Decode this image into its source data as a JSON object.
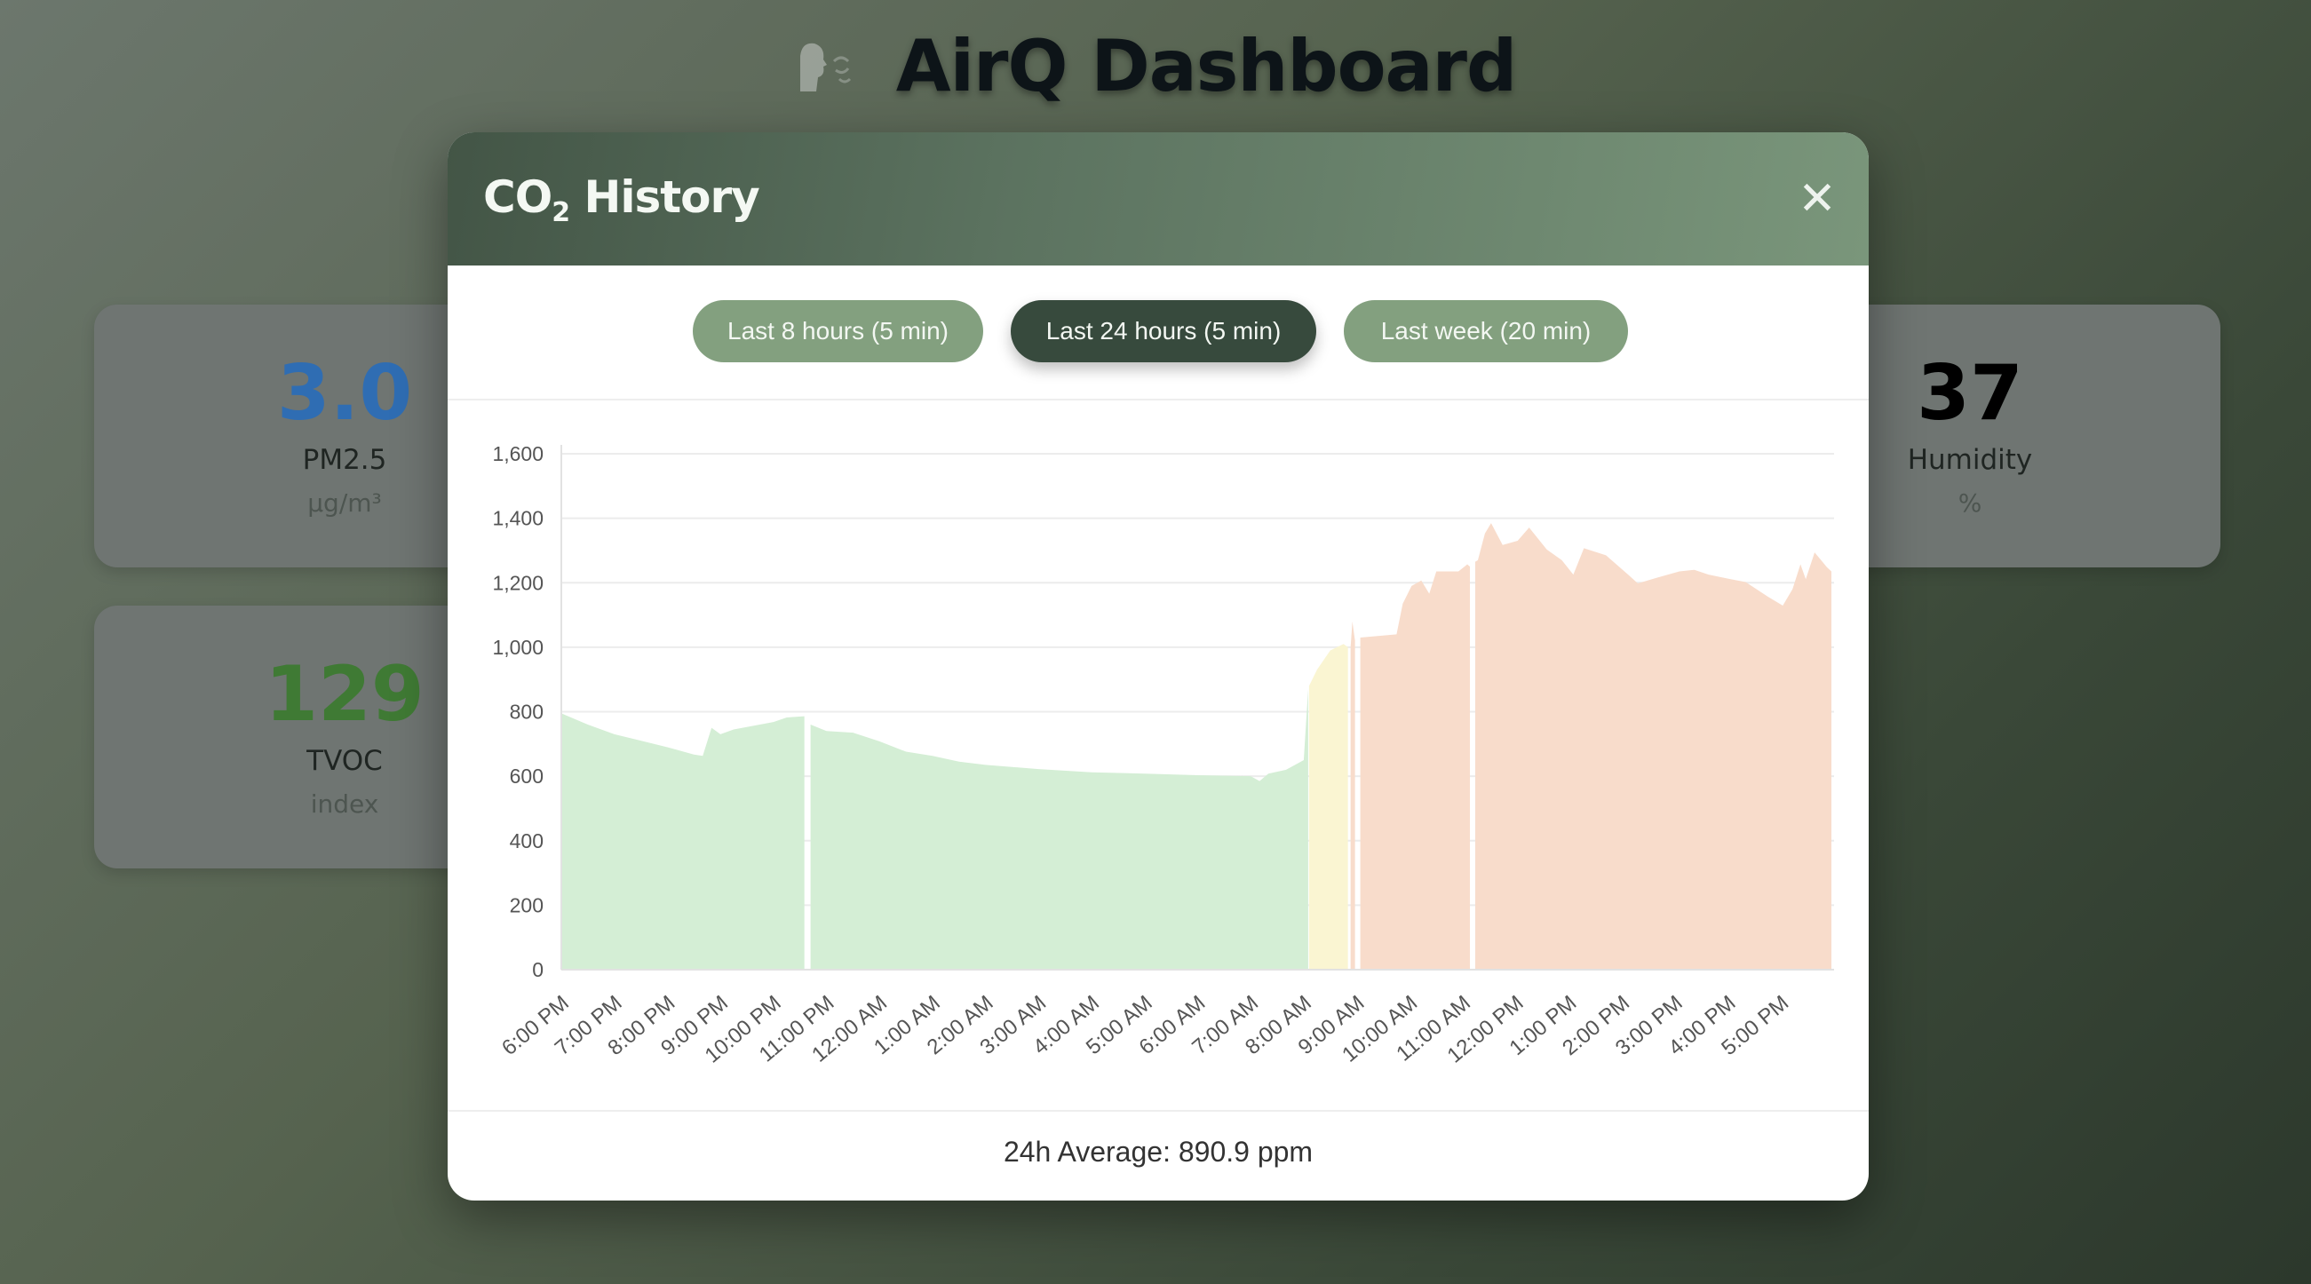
{
  "header": {
    "title": "AirQ Dashboard",
    "logo_icon": "person-breathing-icon"
  },
  "cards": [
    {
      "value": "3.0",
      "label": "PM2.5",
      "unit": "µg/m³",
      "color": "#2f6db3"
    },
    {
      "value": "129",
      "label": "TVOC",
      "unit": "index",
      "color": "#3f7a34"
    },
    {
      "value": "37",
      "label": "Humidity",
      "unit": "%",
      "color": "#000000"
    }
  ],
  "modal": {
    "title_main": "CO",
    "title_sub": "2",
    "title_rest": " History",
    "close_icon": "close-icon",
    "close_label": "✕",
    "range_buttons": [
      {
        "label": "Last 8 hours (5 min)",
        "active": false
      },
      {
        "label": "Last 24 hours (5 min)",
        "active": true
      },
      {
        "label": "Last week (20 min)",
        "active": false
      }
    ],
    "footer": "24h Average: 890.9 ppm"
  },
  "colors": {
    "good": "#d4eed5",
    "moderate": "#faf5d2",
    "poor": "#f8dccb",
    "grid": "#ececec"
  },
  "chart_data": {
    "type": "area",
    "ylim": [
      0,
      1600
    ],
    "yticks": [
      "0",
      "200",
      "400",
      "600",
      "800",
      "1,000",
      "1,200",
      "1,400",
      "1,600"
    ],
    "ytick_values": [
      0,
      200,
      400,
      600,
      800,
      1000,
      1200,
      1400,
      1600
    ],
    "xticks": [
      "6:00 PM",
      "7:00 PM",
      "8:00 PM",
      "9:00 PM",
      "10:00 PM",
      "11:00 PM",
      "12:00 AM",
      "1:00 AM",
      "2:00 AM",
      "3:00 AM",
      "4:00 AM",
      "5:00 AM",
      "6:00 AM",
      "7:00 AM",
      "8:00 AM",
      "9:00 AM",
      "10:00 AM",
      "11:00 AM",
      "12:00 PM",
      "1:00 PM",
      "2:00 PM",
      "3:00 PM",
      "4:00 PM",
      "5:00 PM"
    ],
    "xrange": [
      "18:00",
      "18:00 (next day)"
    ],
    "grid": true,
    "segments": [
      {
        "level": "good",
        "points": [
          [
            "18:00",
            795
          ],
          [
            "18:30",
            760
          ],
          [
            "19:00",
            730
          ],
          [
            "19:30",
            710
          ],
          [
            "20:00",
            690
          ],
          [
            "20:30",
            667
          ],
          [
            "20:40",
            663
          ],
          [
            "20:50",
            750
          ],
          [
            "21:00",
            730
          ],
          [
            "21:15",
            745
          ],
          [
            "22:00",
            768
          ],
          [
            "22:15",
            782
          ],
          [
            "22:35",
            786
          ]
        ]
      },
      {
        "level": "good",
        "points": [
          [
            "22:42",
            760
          ],
          [
            "23:00",
            740
          ],
          [
            "23:30",
            735
          ],
          [
            "0:00",
            708
          ],
          [
            "0:30",
            676
          ],
          [
            "1:00",
            663
          ],
          [
            "1:30",
            645
          ],
          [
            "2:00",
            635
          ],
          [
            "3:00",
            622
          ],
          [
            "4:00",
            612
          ],
          [
            "5:00",
            608
          ],
          [
            "6:00",
            603
          ],
          [
            "7:00",
            600
          ],
          [
            "7:10",
            585
          ],
          [
            "7:20",
            608
          ],
          [
            "7:40",
            620
          ],
          [
            "8:00",
            650
          ],
          [
            "8:05",
            870
          ]
        ]
      },
      {
        "level": "moderate",
        "points": [
          [
            "8:06",
            880
          ],
          [
            "8:15",
            930
          ],
          [
            "8:30",
            990
          ],
          [
            "8:45",
            1010
          ],
          [
            "8:50",
            1000
          ]
        ]
      },
      {
        "level": "poor",
        "points": [
          [
            "8:53",
            1000
          ],
          [
            "8:55",
            1080
          ],
          [
            "8:58",
            1020
          ]
        ]
      },
      {
        "level": "poor",
        "points": [
          [
            "9:04",
            1030
          ],
          [
            "9:45",
            1040
          ],
          [
            "9:52",
            1135
          ],
          [
            "10:02",
            1190
          ],
          [
            "10:13",
            1207
          ],
          [
            "10:22",
            1166
          ],
          [
            "10:30",
            1235
          ],
          [
            "10:55",
            1235
          ],
          [
            "11:05",
            1257
          ],
          [
            "11:08",
            1250
          ]
        ]
      },
      {
        "level": "poor",
        "points": [
          [
            "11:14",
            1265
          ],
          [
            "11:17",
            1270
          ],
          [
            "11:25",
            1353
          ],
          [
            "11:32",
            1385
          ],
          [
            "11:45",
            1317
          ],
          [
            "12:02",
            1330
          ],
          [
            "12:15",
            1371
          ],
          [
            "12:35",
            1303
          ],
          [
            "12:52",
            1270
          ],
          [
            "13:05",
            1225
          ],
          [
            "13:17",
            1307
          ],
          [
            "13:42",
            1285
          ],
          [
            "14:07",
            1225
          ],
          [
            "14:18",
            1198
          ],
          [
            "14:40",
            1216
          ],
          [
            "15:05",
            1235
          ],
          [
            "15:22",
            1240
          ],
          [
            "15:38",
            1225
          ],
          [
            "16:03",
            1211
          ],
          [
            "16:20",
            1202
          ],
          [
            "16:45",
            1157
          ],
          [
            "17:02",
            1129
          ],
          [
            "17:13",
            1180
          ],
          [
            "17:22",
            1257
          ],
          [
            "17:28",
            1211
          ],
          [
            "17:38",
            1294
          ],
          [
            "17:52",
            1248
          ],
          [
            "17:57",
            1235
          ]
        ]
      }
    ]
  }
}
